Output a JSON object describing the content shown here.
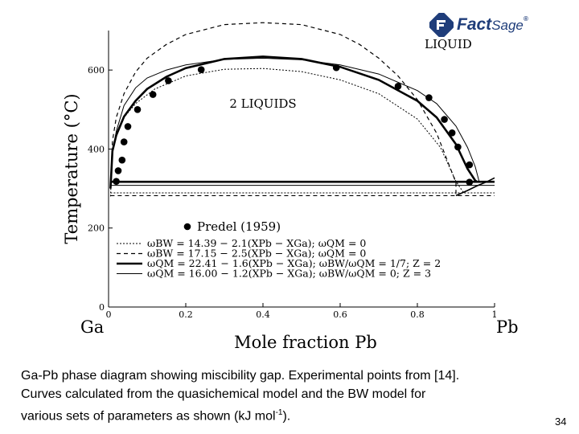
{
  "logo": {
    "text_bold": "Fact",
    "text_light": "Sage",
    "tm": "®"
  },
  "chart_data": {
    "type": "line",
    "title": "",
    "xlabel": "Mole fraction Pb",
    "ylabel": "Temperature (°C)",
    "xlim": [
      0,
      1
    ],
    "ylim": [
      0,
      700
    ],
    "x_ticks": [
      0,
      0.2,
      0.4,
      0.6,
      0.8,
      1
    ],
    "x_tick_labels": [
      "0",
      "0.2",
      "0.4",
      "0.6",
      "0.8",
      "1"
    ],
    "y_ticks": [
      0,
      200,
      400,
      600
    ],
    "y_tick_labels": [
      "0",
      "200",
      "400",
      "600"
    ],
    "left_component": "Ga",
    "right_component": "Pb",
    "region_labels": [
      {
        "text": "LIQUID",
        "x": 0.88,
        "y": 655
      },
      {
        "text": "2 LIQUIDS",
        "x": 0.4,
        "y": 505
      }
    ],
    "experimental": {
      "name": "Predel (1959)",
      "points": [
        [
          0.02,
          318
        ],
        [
          0.025,
          345
        ],
        [
          0.035,
          372
        ],
        [
          0.04,
          418
        ],
        [
          0.05,
          457
        ],
        [
          0.075,
          500
        ],
        [
          0.115,
          538
        ],
        [
          0.155,
          573
        ],
        [
          0.24,
          601
        ],
        [
          0.59,
          606
        ],
        [
          0.75,
          559
        ],
        [
          0.83,
          530
        ],
        [
          0.87,
          475
        ],
        [
          0.89,
          441
        ],
        [
          0.905,
          405
        ],
        [
          0.935,
          360
        ],
        [
          0.935,
          316
        ]
      ]
    },
    "legend_equations": [
      "ωBW = 14.39 − 2.1(XPb − XGa); ωQM = 0",
      "ωBW = 17.15 − 2.5(XPb − XGa); ωQM = 0",
      "ωQM = 22.41 − 1.6(XPb − XGa); ωBW/ωQM = 1/7; Z = 2",
      "ωQM = 16.00 − 1.2(XPb − XGa); ωBW/ωQM = 0; Z = 3"
    ],
    "series": [
      {
        "style": "dotted",
        "x": [
          0.005,
          0.01,
          0.02,
          0.04,
          0.07,
          0.12,
          0.2,
          0.3,
          0.4,
          0.5,
          0.6,
          0.7,
          0.8,
          0.86,
          0.9,
          0.92
        ],
        "y": [
          280,
          390,
          440,
          480,
          515,
          552,
          585,
          602,
          604,
          596,
          575,
          540,
          476,
          404,
          318,
          289
        ],
        "invariant_y": 289
      },
      {
        "style": "dashed",
        "x": [
          0.005,
          0.01,
          0.02,
          0.04,
          0.07,
          0.1,
          0.15,
          0.2,
          0.3,
          0.4,
          0.5,
          0.6,
          0.65,
          0.7,
          0.75,
          0.8,
          0.85,
          0.9,
          0.9
        ],
        "y": [
          300,
          420,
          480,
          540,
          595,
          630,
          665,
          690,
          715,
          720,
          715,
          690,
          665,
          630,
          585,
          525,
          440,
          315,
          280
        ],
        "invariant_y": 282
      },
      {
        "style": "solid-thick",
        "x": [
          0.005,
          0.01,
          0.02,
          0.04,
          0.07,
          0.1,
          0.15,
          0.2,
          0.3,
          0.4,
          0.5,
          0.6,
          0.7,
          0.8,
          0.85,
          0.9,
          0.93,
          0.95,
          0.955
        ],
        "y": [
          300,
          395,
          435,
          482,
          522,
          552,
          583,
          605,
          628,
          634,
          628,
          608,
          575,
          522,
          480,
          412,
          350,
          320,
          317
        ],
        "invariant_y": 317
      },
      {
        "style": "solid-thin",
        "x": [
          0.005,
          0.01,
          0.02,
          0.04,
          0.07,
          0.1,
          0.15,
          0.2,
          0.3,
          0.4,
          0.5,
          0.6,
          0.7,
          0.8,
          0.85,
          0.9,
          0.93,
          0.95,
          0.96
        ],
        "y": [
          300,
          390,
          445,
          510,
          555,
          580,
          600,
          613,
          627,
          630,
          626,
          613,
          590,
          548,
          515,
          458,
          404,
          355,
          318
        ],
        "invariant_y": 308
      }
    ],
    "pb_side_liquidus": {
      "x": [
        0.9,
        0.93,
        0.955,
        0.98,
        1.0
      ],
      "y": [
        282,
        295,
        307,
        317,
        327
      ]
    }
  },
  "caption": {
    "lines": [
      "Ga-Pb phase diagram showing miscibility gap. Experimental points from [14].",
      "Curves calculated from the quasichemical model and the BW model for"
    ],
    "last_line_text": "various sets of parameters as shown (kJ mol",
    "last_line_sup": "-1",
    "last_line_end": ")."
  },
  "page_number": "34"
}
